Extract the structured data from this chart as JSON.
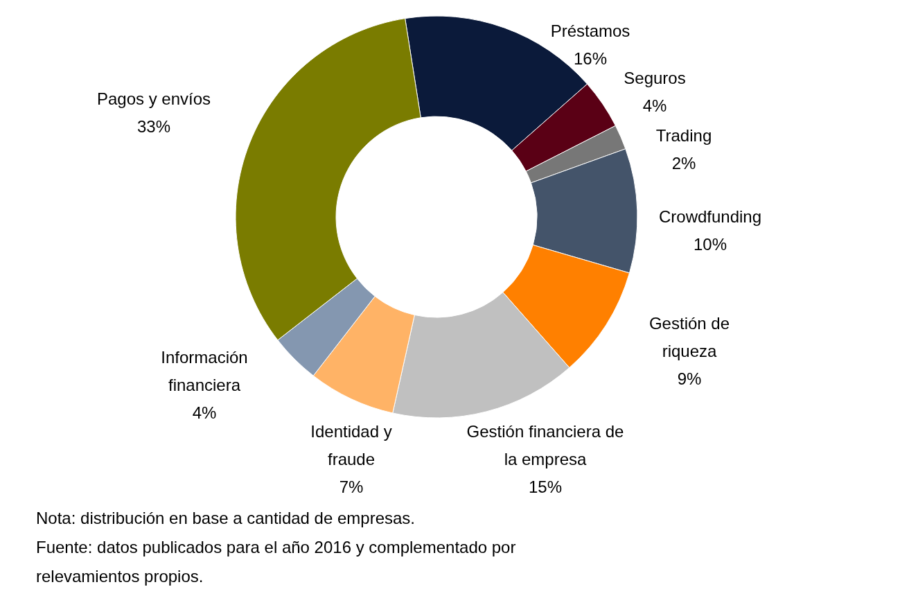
{
  "chart_data": {
    "type": "donut",
    "categories": [
      "Préstamos",
      "Seguros",
      "Trading",
      "Crowdfunding",
      "Gestión de riqueza",
      "Gestión financiera de la empresa",
      "Identidad y fraude",
      "Información financiera",
      "Pagos y envíos"
    ],
    "values": [
      16,
      4,
      2,
      10,
      9,
      15,
      7,
      4,
      33
    ],
    "colors": [
      "#0b1a3a",
      "#5a0015",
      "#777777",
      "#44546a",
      "#ff8000",
      "#c0c0c0",
      "#ffb366",
      "#8497b0",
      "#7a7c00"
    ],
    "value_labels": [
      "16%",
      "4%",
      "2%",
      "10%",
      "9%",
      "15%",
      "7%",
      "4%",
      "33%"
    ],
    "annotations": [
      "Nota: distribución en base a cantidad de empresas.",
      "Fuente: datos publicados para el año 2016 y complementado por relevamientos propios."
    ]
  }
}
